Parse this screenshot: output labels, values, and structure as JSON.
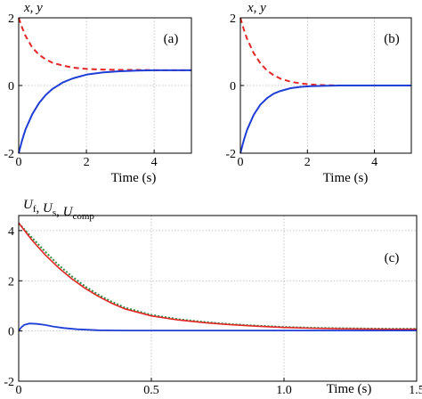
{
  "chart_data": [
    {
      "id": "a",
      "type": "line",
      "panel_label": "(a)",
      "ylabel": "x, y",
      "xlabel": "Time (s)",
      "xlim": [
        0,
        5.1
      ],
      "ylim": [
        -2,
        2
      ],
      "xticks": [
        0,
        2,
        4
      ],
      "yticks": [
        -2,
        0,
        2
      ],
      "grid": true,
      "series": [
        {
          "color": "#e32626",
          "dash": "6,4",
          "x": [
            0,
            0.1,
            0.2,
            0.4,
            0.6,
            0.8,
            1.0,
            1.3,
            1.6,
            2.0,
            2.5,
            3.0,
            3.5,
            4.0,
            4.5,
            5.1
          ],
          "values": [
            2.0,
            1.71,
            1.47,
            1.12,
            0.91,
            0.77,
            0.67,
            0.59,
            0.53,
            0.49,
            0.47,
            0.46,
            0.46,
            0.45,
            0.45,
            0.45
          ]
        },
        {
          "color": "#1f3ed6",
          "dash": "",
          "x": [
            0,
            0.1,
            0.2,
            0.4,
            0.6,
            0.8,
            1.0,
            1.3,
            1.6,
            2.0,
            2.5,
            3.0,
            3.5,
            4.0,
            4.5,
            5.1
          ],
          "values": [
            -2.0,
            -1.62,
            -1.3,
            -0.85,
            -0.52,
            -0.28,
            -0.1,
            0.09,
            0.21,
            0.32,
            0.39,
            0.42,
            0.44,
            0.45,
            0.45,
            0.45
          ]
        }
      ]
    },
    {
      "id": "b",
      "type": "line",
      "panel_label": "(b)",
      "ylabel": "x, y",
      "xlabel": "Time (s)",
      "xlim": [
        0,
        5.1
      ],
      "ylim": [
        -2,
        2
      ],
      "xticks": [
        0,
        2,
        4
      ],
      "yticks": [
        -2,
        0,
        2
      ],
      "grid": true,
      "series": [
        {
          "color": "#e32626",
          "dash": "6,4",
          "x": [
            0,
            0.1,
            0.2,
            0.4,
            0.6,
            0.8,
            1.0,
            1.2,
            1.5,
            1.8,
            2.1,
            2.5,
            3.0,
            4.0,
            5.1
          ],
          "values": [
            2.0,
            1.66,
            1.38,
            0.95,
            0.65,
            0.44,
            0.3,
            0.2,
            0.11,
            0.06,
            0.03,
            0.01,
            0.0,
            0.0,
            0.0
          ]
        },
        {
          "color": "#1f3ed6",
          "dash": "",
          "x": [
            0,
            0.1,
            0.2,
            0.4,
            0.6,
            0.8,
            1.0,
            1.2,
            1.5,
            1.8,
            2.1,
            2.5,
            3.0,
            4.0,
            5.1
          ],
          "values": [
            -2.0,
            -1.62,
            -1.31,
            -0.86,
            -0.56,
            -0.37,
            -0.24,
            -0.16,
            -0.08,
            -0.04,
            -0.02,
            -0.01,
            0.0,
            0.0,
            0.0
          ]
        }
      ]
    },
    {
      "id": "c",
      "type": "line",
      "panel_label": "(c)",
      "ylabel_parts": [
        {
          "t": "U",
          "italic": true
        },
        {
          "t": "f",
          "sub": true
        },
        {
          "t": ", "
        },
        {
          "t": "U",
          "italic": true
        },
        {
          "t": "s",
          "sub": true
        },
        {
          "t": ", "
        },
        {
          "t": "U",
          "italic": true
        },
        {
          "t": "comp",
          "sub": true
        }
      ],
      "xlabel": "Time (s)",
      "xlim": [
        0,
        1.5
      ],
      "ylim": [
        -2,
        4.6
      ],
      "xticks": [
        0,
        0.5,
        1.0,
        1.5
      ],
      "xtick_labels": [
        "0",
        "0.5",
        "1.0",
        "1.5"
      ],
      "yticks": [
        -2,
        0,
        2,
        4
      ],
      "grid": true,
      "series": [
        {
          "color": "#2a8a3a",
          "dash": "2,2",
          "width": 2,
          "x": [
            0,
            0.05,
            0.1,
            0.15,
            0.2,
            0.25,
            0.3,
            0.35,
            0.4,
            0.5,
            0.6,
            0.7,
            0.8,
            0.9,
            1.0,
            1.1,
            1.2,
            1.3,
            1.4,
            1.5
          ],
          "values": [
            4.3,
            3.72,
            3.16,
            2.63,
            2.18,
            1.78,
            1.45,
            1.17,
            0.93,
            0.64,
            0.47,
            0.36,
            0.27,
            0.21,
            0.16,
            0.13,
            0.11,
            0.1,
            0.09,
            0.09
          ]
        },
        {
          "color": "#e32626",
          "dash": "",
          "width": 1.6,
          "x": [
            0,
            0.05,
            0.1,
            0.15,
            0.2,
            0.25,
            0.3,
            0.35,
            0.4,
            0.5,
            0.6,
            0.7,
            0.8,
            0.9,
            1.0,
            1.1,
            1.2,
            1.3,
            1.4,
            1.5
          ],
          "values": [
            4.3,
            3.62,
            3.03,
            2.52,
            2.08,
            1.7,
            1.38,
            1.11,
            0.88,
            0.6,
            0.44,
            0.33,
            0.25,
            0.19,
            0.14,
            0.11,
            0.09,
            0.08,
            0.07,
            0.07
          ]
        },
        {
          "color": "#1f3ed6",
          "dash": "",
          "width": 1.8,
          "x": [
            0,
            0.01,
            0.02,
            0.04,
            0.07,
            0.1,
            0.13,
            0.17,
            0.22,
            0.3,
            0.4,
            0.6,
            0.8,
            1.0,
            1.2,
            1.5
          ],
          "values": [
            0.0,
            0.15,
            0.24,
            0.3,
            0.28,
            0.24,
            0.18,
            0.12,
            0.07,
            0.03,
            0.02,
            0.02,
            0.02,
            0.02,
            0.02,
            0.02
          ]
        }
      ]
    }
  ]
}
